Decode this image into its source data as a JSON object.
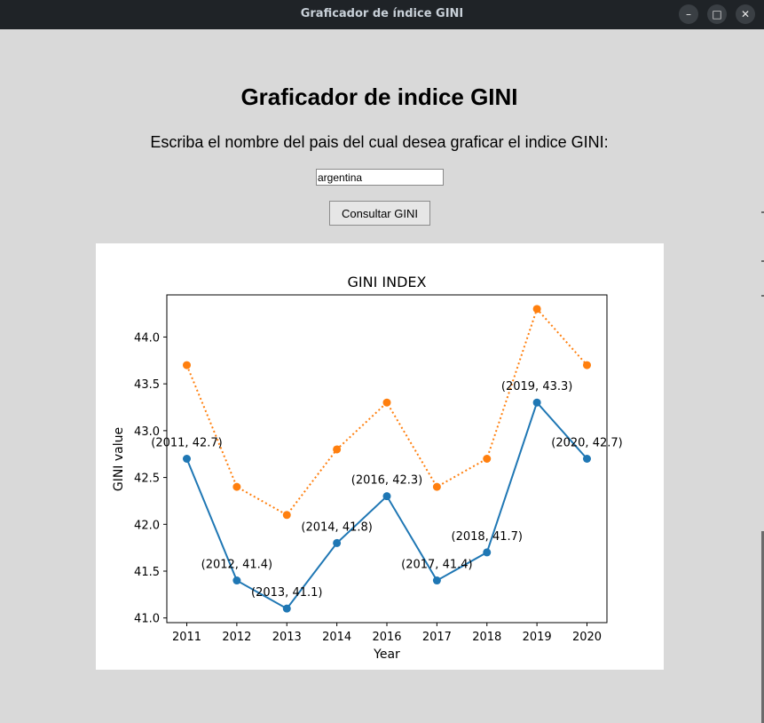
{
  "window": {
    "title": "Graficador de índice GINI",
    "controls": {
      "minimize_icon": "minimize-icon",
      "maximize_icon": "maximize-icon",
      "close_icon": "close-icon"
    }
  },
  "header": {
    "title": "Graficador de indice GINI",
    "prompt": "Escriba el nombre del pais del cual desea graficar el indice GINI:"
  },
  "form": {
    "country_value": "argentina",
    "button_label": "Consultar GINI"
  },
  "colors": {
    "series_1": "#1f77b4",
    "series_2": "#ff7f0e",
    "window_bg": "#d9d9d9",
    "titlebar_bg": "#1f2327"
  },
  "chart_data": {
    "type": "line",
    "title": "GINI INDEX",
    "xlabel": "Year",
    "ylabel": "GINI value",
    "categories": [
      "2011",
      "2012",
      "2013",
      "2014",
      "2016",
      "2017",
      "2018",
      "2019",
      "2020"
    ],
    "series": [
      {
        "values": [
          42.7,
          41.4,
          41.1,
          41.8,
          42.3,
          41.4,
          41.7,
          43.3,
          42.7
        ],
        "style": "solid",
        "annotations": [
          "(2011, 42.7)",
          "(2012, 41.4)",
          "(2013, 41.1)",
          "(2014, 41.8)",
          "(2016, 42.3)",
          "(2017, 41.4)",
          "(2018, 41.7)",
          "(2019, 43.3)",
          "(2020, 42.7)"
        ]
      },
      {
        "values": [
          43.7,
          42.4,
          42.1,
          42.8,
          43.3,
          42.4,
          42.7,
          44.3,
          43.7
        ],
        "style": "dotted"
      }
    ],
    "yticks": [
      "41.0",
      "41.5",
      "42.0",
      "42.5",
      "43.0",
      "43.5",
      "44.0"
    ],
    "ylim": [
      40.95,
      44.45
    ],
    "grid": false,
    "legend": "none"
  }
}
